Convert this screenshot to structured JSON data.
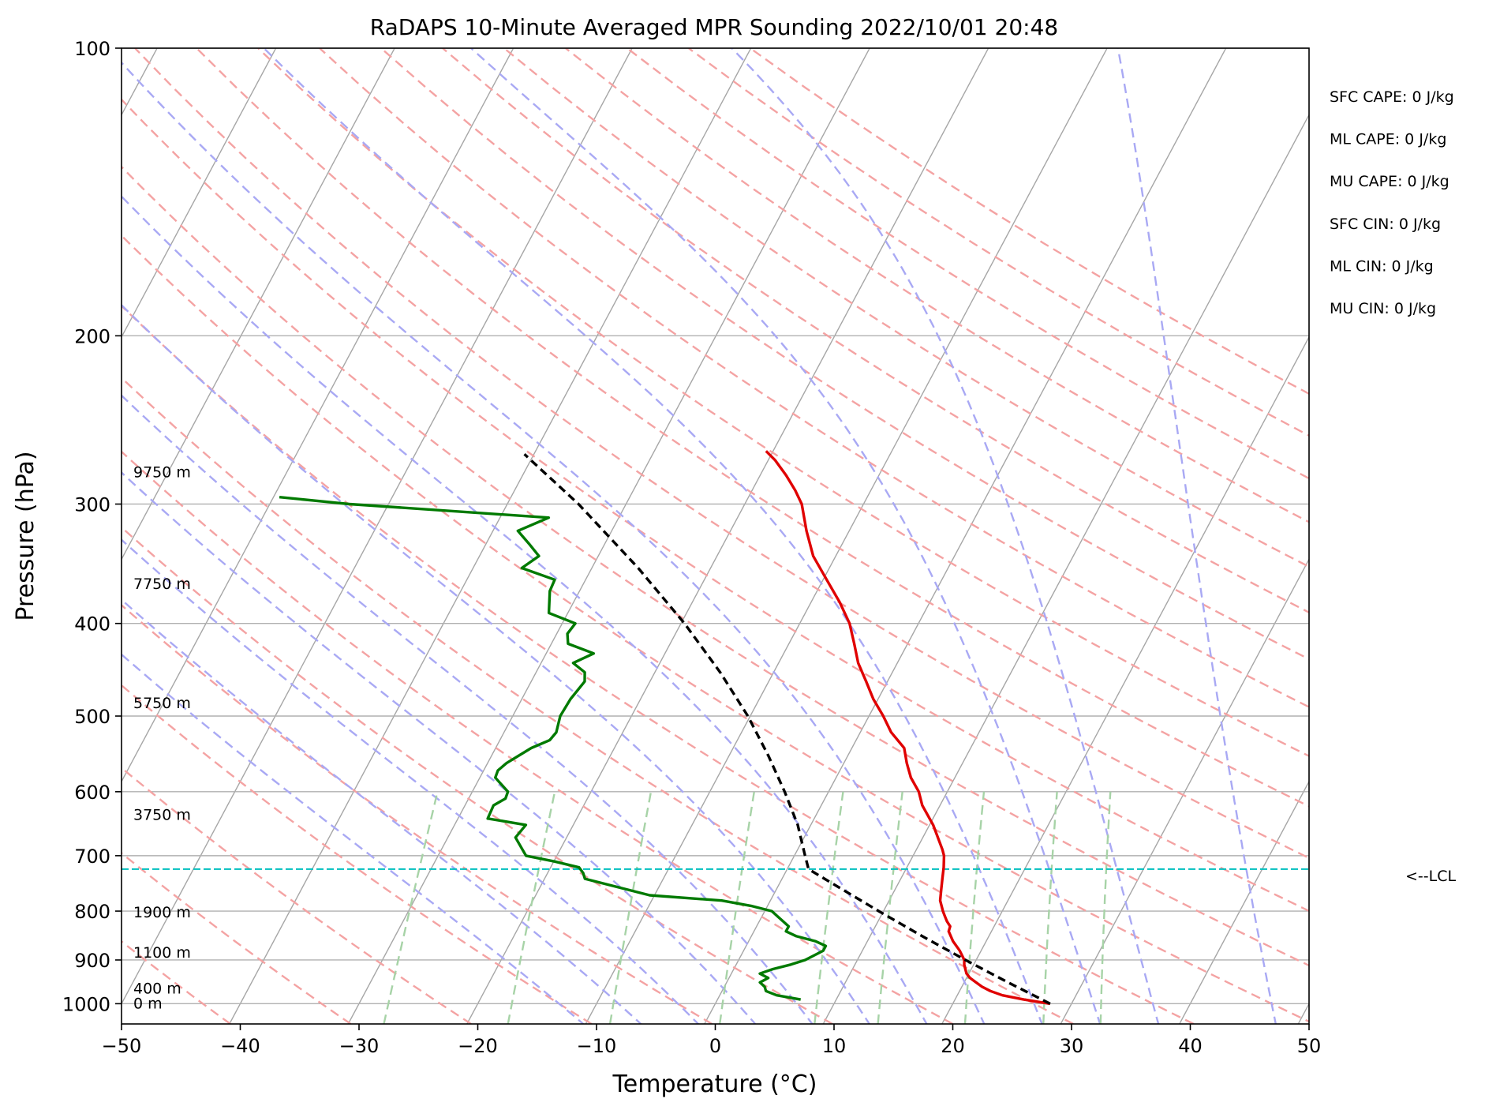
{
  "chart_data": {
    "type": "skew-t log-p sounding",
    "title": "RaDAPS 10-Minute Averaged MPR Sounding 2022/10/01 20:48",
    "xlabel": "Temperature (°C)",
    "ylabel": "Pressure (hPa)",
    "x_ticks": [
      -50,
      -40,
      -30,
      -20,
      -10,
      0,
      10,
      20,
      30,
      40,
      50
    ],
    "x_tick_labels": [
      "−50",
      "−40",
      "−30",
      "−20",
      "−10",
      "0",
      "10",
      "20",
      "30",
      "40",
      "50"
    ],
    "y_ticks": [
      100,
      200,
      300,
      400,
      500,
      600,
      700,
      800,
      900,
      1000
    ],
    "y_tick_labels": [
      "100",
      "200",
      "300",
      "400",
      "500",
      "600",
      "700",
      "800",
      "900",
      "1000"
    ],
    "xlim": [
      -50,
      50
    ],
    "ylim": [
      1050,
      100
    ],
    "y_scale": "log",
    "grid": true,
    "colors": {
      "temperature": "#e00000",
      "dewpoint": "#007a00",
      "parcel": "#000000",
      "lcl": "#00bfbf",
      "isotherm": "#a6a6a6",
      "dry_adiabat": "#f4a3a3",
      "moist_adiabat": "#a9a9f4",
      "mixing_ratio": "#a7d3a7",
      "grid": "#b0b0b0"
    },
    "series": [
      {
        "name": "Temperature",
        "points": [
          [
            1000,
            28.2
          ],
          [
            990,
            25.8
          ],
          [
            980,
            23.8
          ],
          [
            970,
            22.6
          ],
          [
            960,
            21.7
          ],
          [
            950,
            21.0
          ],
          [
            940,
            20.3
          ],
          [
            930,
            19.8
          ],
          [
            920,
            19.5
          ],
          [
            910,
            19.2
          ],
          [
            900,
            19.0
          ],
          [
            880,
            18.2
          ],
          [
            860,
            17.2
          ],
          [
            840,
            16.4
          ],
          [
            830,
            16.3
          ],
          [
            820,
            15.8
          ],
          [
            810,
            15.4
          ],
          [
            800,
            15.0
          ],
          [
            780,
            14.3
          ],
          [
            760,
            13.9
          ],
          [
            740,
            13.5
          ],
          [
            720,
            13.1
          ],
          [
            700,
            12.6
          ],
          [
            690,
            12.2
          ],
          [
            650,
            10.3
          ],
          [
            620,
            8.5
          ],
          [
            600,
            7.6
          ],
          [
            580,
            6.3
          ],
          [
            560,
            5.3
          ],
          [
            540,
            4.4
          ],
          [
            520,
            2.6
          ],
          [
            500,
            1.2
          ],
          [
            480,
            -0.4
          ],
          [
            460,
            -1.8
          ],
          [
            440,
            -3.3
          ],
          [
            420,
            -4.5
          ],
          [
            400,
            -5.8
          ],
          [
            380,
            -7.6
          ],
          [
            360,
            -9.7
          ],
          [
            340,
            -11.9
          ],
          [
            320,
            -13.6
          ],
          [
            300,
            -15.2
          ],
          [
            290,
            -16.4
          ],
          [
            280,
            -17.8
          ],
          [
            270,
            -19.4
          ],
          [
            264,
            -20.6
          ]
        ]
      },
      {
        "name": "Dewpoint",
        "points": [
          [
            990,
            7.0
          ],
          [
            980,
            4.8
          ],
          [
            970,
            3.7
          ],
          [
            960,
            3.4
          ],
          [
            950,
            2.8
          ],
          [
            940,
            3.3
          ],
          [
            930,
            2.4
          ],
          [
            920,
            3.3
          ],
          [
            910,
            4.6
          ],
          [
            900,
            5.6
          ],
          [
            880,
            6.7
          ],
          [
            870,
            6.7
          ],
          [
            860,
            5.6
          ],
          [
            850,
            3.8
          ],
          [
            840,
            2.7
          ],
          [
            830,
            2.7
          ],
          [
            810,
            1.3
          ],
          [
            800,
            0.6
          ],
          [
            790,
            -1.4
          ],
          [
            780,
            -4.1
          ],
          [
            770,
            -10.4
          ],
          [
            740,
            -16.6
          ],
          [
            730,
            -17.0
          ],
          [
            720,
            -17.6
          ],
          [
            710,
            -19.9
          ],
          [
            700,
            -22.6
          ],
          [
            670,
            -24.3
          ],
          [
            650,
            -24.0
          ],
          [
            640,
            -27.5
          ],
          [
            620,
            -27.6
          ],
          [
            610,
            -26.9
          ],
          [
            600,
            -27.0
          ],
          [
            580,
            -28.7
          ],
          [
            570,
            -28.8
          ],
          [
            560,
            -28.4
          ],
          [
            540,
            -27.0
          ],
          [
            530,
            -25.8
          ],
          [
            520,
            -25.6
          ],
          [
            500,
            -26.0
          ],
          [
            480,
            -25.9
          ],
          [
            460,
            -25.5
          ],
          [
            450,
            -25.9
          ],
          [
            440,
            -27.3
          ],
          [
            430,
            -26.0
          ],
          [
            420,
            -28.6
          ],
          [
            410,
            -29.1
          ],
          [
            400,
            -28.9
          ],
          [
            390,
            -31.6
          ],
          [
            370,
            -32.5
          ],
          [
            360,
            -32.6
          ],
          [
            350,
            -35.9
          ],
          [
            340,
            -35.0
          ],
          [
            330,
            -36.4
          ],
          [
            320,
            -37.9
          ],
          [
            310,
            -35.9
          ],
          [
            300,
            -53.3
          ],
          [
            295,
            -59.5
          ]
        ]
      },
      {
        "name": "Parcel",
        "points": [
          [
            1000,
            28.2
          ],
          [
            950,
            23.7
          ],
          [
            900,
            19.1
          ],
          [
            850,
            14.4
          ],
          [
            800,
            9.6
          ],
          [
            750,
            4.6
          ],
          [
            723,
            1.8
          ],
          [
            700,
            0.9
          ],
          [
            650,
            -1.1
          ],
          [
            600,
            -3.7
          ],
          [
            550,
            -6.7
          ],
          [
            500,
            -10.2
          ],
          [
            450,
            -14.5
          ],
          [
            400,
            -19.7
          ],
          [
            350,
            -26.1
          ],
          [
            300,
            -34.0
          ],
          [
            266,
            -40.8
          ]
        ]
      }
    ],
    "lcl_pressure": 723,
    "lcl_label": "<--LCL",
    "dry_adiabat_thetas_K": [
      230,
      240,
      250,
      260,
      270,
      280,
      290,
      300,
      310,
      320,
      330,
      340,
      350,
      360,
      370,
      380,
      390,
      400,
      410,
      420,
      430,
      440,
      450
    ],
    "moist_adiabat_thetae_K": [
      270,
      275,
      280,
      285,
      290,
      295,
      300,
      305,
      310,
      315,
      320,
      330,
      340,
      350,
      360
    ],
    "mixing_ratio_lines_gkg": [
      0.4,
      1,
      2,
      4,
      7,
      10,
      16,
      24,
      32
    ],
    "height_labels": [
      {
        "text": "9750 m",
        "pressure": 278
      },
      {
        "text": "7750 m",
        "pressure": 364
      },
      {
        "text": "5750 m",
        "pressure": 485
      },
      {
        "text": "3750 m",
        "pressure": 635
      },
      {
        "text": "1900 m",
        "pressure": 803
      },
      {
        "text": "1100 m",
        "pressure": 885
      },
      {
        "text": "400 m",
        "pressure": 965
      },
      {
        "text": "0 m",
        "pressure": 1000
      }
    ],
    "indices": [
      "SFC CAPE: 0 J/kg",
      "ML CAPE: 0 J/kg",
      "MU CAPE: 0 J/kg",
      "SFC CIN: 0 J/kg",
      "ML CIN: 0 J/kg",
      "MU CIN: 0 J/kg"
    ]
  }
}
